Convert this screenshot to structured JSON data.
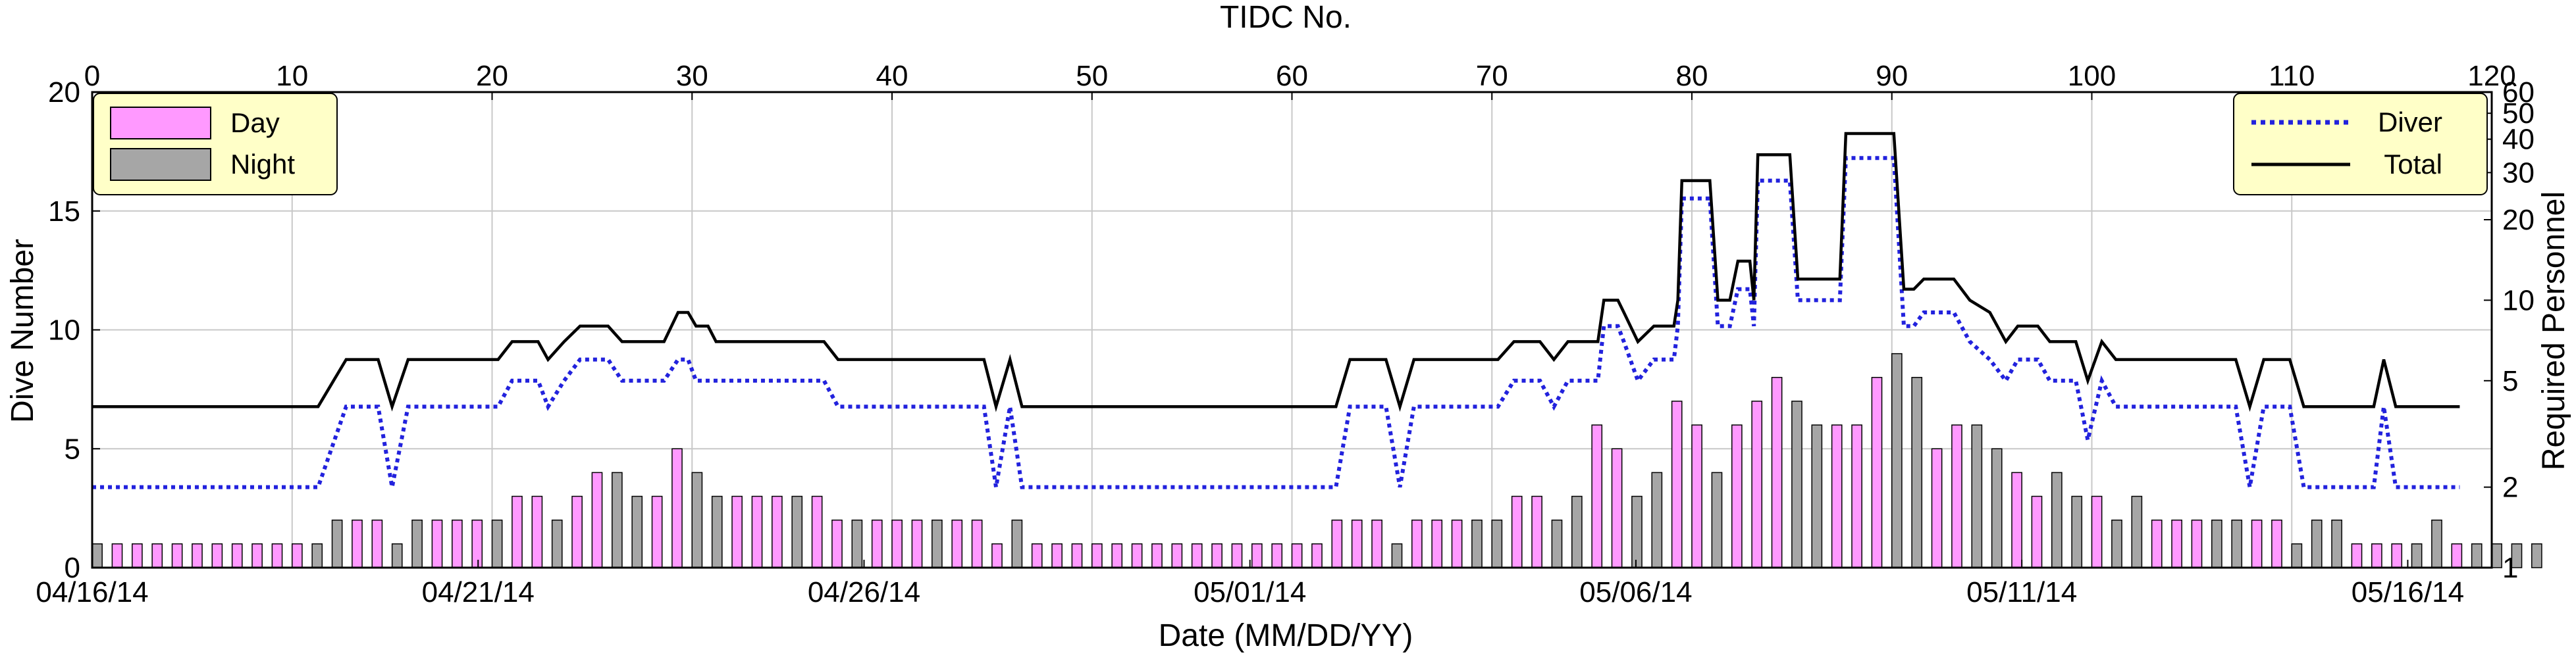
{
  "chart_data": {
    "type": "bar",
    "top_axis": {
      "label": "TIDC No.",
      "range": [
        0,
        120
      ],
      "ticks": [
        0,
        10,
        20,
        30,
        40,
        50,
        60,
        70,
        80,
        90,
        100,
        110,
        120
      ]
    },
    "xlabel": "Date (MM/DD/YY)",
    "x_tick_labels": [
      "04/16/14",
      "04/21/14",
      "04/26/14",
      "05/01/14",
      "05/06/14",
      "05/11/14",
      "05/16/14"
    ],
    "x_tick_positions_tidc": [
      0,
      19.3,
      38.6,
      57.9,
      77.2,
      96.5,
      115.8
    ],
    "ylabel": "Dive Number",
    "ylim": [
      0,
      20
    ],
    "y_ticks": [
      0,
      5,
      10,
      15,
      20
    ],
    "y2label": "Required Personnel",
    "y2_scale": "log",
    "y2lim": [
      1,
      60
    ],
    "y2_ticks": [
      1,
      2,
      5,
      10,
      20,
      30,
      40,
      50,
      60
    ],
    "grid": true,
    "legends": [
      {
        "position": "top-left",
        "entries": [
          {
            "label": "Day",
            "color": "#ff99ff"
          },
          {
            "label": "Night",
            "color": "#a6a6a6"
          }
        ]
      },
      {
        "position": "top-right",
        "entries": [
          {
            "label": "Diver",
            "color": "#2222dd"
          },
          {
            "label": "Total",
            "color": "#000000"
          }
        ]
      }
    ],
    "series_colors": {
      "day": "#ff99ff",
      "night": "#a6a6a6",
      "diver": "#2222dd",
      "total": "#000000"
    },
    "dive_numbers": [
      1,
      1,
      1,
      1,
      1,
      1,
      1,
      1,
      1,
      1,
      1,
      1,
      2,
      2,
      2,
      1,
      2,
      2,
      2,
      2,
      2,
      3,
      3,
      2,
      3,
      4,
      4,
      3,
      3,
      5,
      4,
      3,
      3,
      3,
      3,
      3,
      3,
      2,
      2,
      2,
      2,
      2,
      2,
      2,
      2,
      1,
      2,
      1,
      1,
      1,
      1,
      1,
      1,
      1,
      1,
      1,
      1,
      1,
      1,
      1,
      1,
      1,
      2,
      2,
      2,
      1,
      2,
      2,
      2,
      2,
      2,
      3,
      3,
      2,
      3,
      6,
      5,
      3,
      4,
      7,
      6,
      4,
      6,
      7,
      8,
      7,
      6,
      6,
      6,
      8,
      9,
      8,
      5,
      6,
      6,
      5,
      4,
      3,
      4,
      3,
      3,
      2,
      3,
      2,
      2,
      2,
      2,
      2,
      2,
      2,
      1,
      2,
      2,
      1,
      1,
      1,
      1,
      2,
      1,
      1,
      1,
      1,
      1
    ],
    "shift": [
      "N",
      "D",
      "D",
      "D",
      "D",
      "D",
      "D",
      "D",
      "D",
      "D",
      "D",
      "N",
      "N",
      "D",
      "D",
      "N",
      "N",
      "D",
      "D",
      "D",
      "N",
      "D",
      "D",
      "N",
      "D",
      "D",
      "N",
      "N",
      "D",
      "D",
      "N",
      "N",
      "D",
      "D",
      "D",
      "N",
      "D",
      "D",
      "N",
      "D",
      "D",
      "D",
      "N",
      "D",
      "D",
      "D",
      "N",
      "D",
      "D",
      "D",
      "D",
      "D",
      "D",
      "D",
      "D",
      "D",
      "D",
      "D",
      "D",
      "D",
      "D",
      "D",
      "D",
      "D",
      "D",
      "N",
      "D",
      "D",
      "D",
      "N",
      "N",
      "D",
      "D",
      "N",
      "N",
      "D",
      "D",
      "N",
      "N",
      "D",
      "D",
      "N",
      "D",
      "D",
      "D",
      "N",
      "N",
      "D",
      "D",
      "D",
      "N",
      "N",
      "D",
      "D",
      "N",
      "N",
      "D",
      "D",
      "N",
      "N",
      "D",
      "N",
      "N",
      "D",
      "D",
      "D",
      "N",
      "N",
      "D",
      "D",
      "N",
      "N",
      "N",
      "D",
      "D",
      "D",
      "N",
      "N",
      "D",
      "N",
      "N",
      "N",
      "N"
    ],
    "personnel": {
      "total": [
        [
          0,
          4
        ],
        [
          11.3,
          4
        ],
        [
          12.7,
          6
        ],
        [
          14.3,
          6
        ],
        [
          15,
          4
        ],
        [
          15.8,
          6
        ],
        [
          20.3,
          6
        ],
        [
          21,
          7
        ],
        [
          22.3,
          7
        ],
        [
          22.8,
          6
        ],
        [
          23.6,
          7
        ],
        [
          24.4,
          8
        ],
        [
          25.8,
          8
        ],
        [
          26.5,
          7
        ],
        [
          28.6,
          7
        ],
        [
          29.3,
          9
        ],
        [
          29.8,
          9
        ],
        [
          30.2,
          8
        ],
        [
          30.8,
          8
        ],
        [
          31.2,
          7
        ],
        [
          36.6,
          7
        ],
        [
          37.3,
          6
        ],
        [
          44.6,
          6
        ],
        [
          45.2,
          4
        ],
        [
          45.9,
          6
        ],
        [
          46.5,
          4
        ],
        [
          62.2,
          4
        ],
        [
          62.9,
          6
        ],
        [
          64.7,
          6
        ],
        [
          65.4,
          4
        ],
        [
          66.1,
          6
        ],
        [
          70.3,
          6
        ],
        [
          71.1,
          7
        ],
        [
          72.4,
          7
        ],
        [
          73.1,
          6
        ],
        [
          73.8,
          7
        ],
        [
          75.3,
          7
        ],
        [
          75.6,
          10
        ],
        [
          76.3,
          10
        ],
        [
          76.6,
          9
        ],
        [
          77.3,
          7
        ],
        [
          78.1,
          8
        ],
        [
          79.1,
          8
        ],
        [
          79.3,
          10
        ],
        [
          79.5,
          28
        ],
        [
          80.9,
          28
        ],
        [
          81.3,
          10
        ],
        [
          81.9,
          10
        ],
        [
          82.3,
          14
        ],
        [
          82.9,
          14
        ],
        [
          83.1,
          10
        ],
        [
          83.3,
          35
        ],
        [
          84.9,
          35
        ],
        [
          85.3,
          12
        ],
        [
          87.4,
          12
        ],
        [
          87.7,
          42
        ],
        [
          90.1,
          42
        ],
        [
          90.6,
          11
        ],
        [
          91.1,
          11
        ],
        [
          91.6,
          12
        ],
        [
          93.1,
          12
        ],
        [
          93.9,
          10
        ],
        [
          94.9,
          9
        ],
        [
          95.7,
          7
        ],
        [
          96.3,
          8
        ],
        [
          97.3,
          8
        ],
        [
          97.9,
          7
        ],
        [
          99.2,
          7
        ],
        [
          99.8,
          5
        ],
        [
          100.5,
          7
        ],
        [
          101.2,
          6
        ],
        [
          107.2,
          6
        ],
        [
          107.9,
          4
        ],
        [
          108.6,
          6
        ],
        [
          109.9,
          6
        ],
        [
          110.6,
          4
        ],
        [
          114.1,
          4
        ],
        [
          114.6,
          6
        ],
        [
          115.2,
          4
        ],
        [
          118.4,
          4
        ]
      ],
      "diver": [
        [
          0,
          2
        ],
        [
          11.3,
          2
        ],
        [
          12.7,
          4
        ],
        [
          14.3,
          4
        ],
        [
          15,
          2
        ],
        [
          15.8,
          4
        ],
        [
          20.3,
          4
        ],
        [
          21,
          5
        ],
        [
          22.3,
          5
        ],
        [
          22.8,
          4
        ],
        [
          23.6,
          5
        ],
        [
          24.4,
          6
        ],
        [
          25.8,
          6
        ],
        [
          26.5,
          5
        ],
        [
          28.6,
          5
        ],
        [
          29.3,
          6
        ],
        [
          29.8,
          6
        ],
        [
          30.2,
          5
        ],
        [
          30.8,
          5
        ],
        [
          31.2,
          5
        ],
        [
          36.6,
          5
        ],
        [
          37.3,
          4
        ],
        [
          44.6,
          4
        ],
        [
          45.2,
          2
        ],
        [
          45.9,
          4
        ],
        [
          46.5,
          2
        ],
        [
          62.2,
          2
        ],
        [
          62.9,
          4
        ],
        [
          64.7,
          4
        ],
        [
          65.4,
          2
        ],
        [
          66.1,
          4
        ],
        [
          70.3,
          4
        ],
        [
          71.1,
          5
        ],
        [
          72.4,
          5
        ],
        [
          73.1,
          4
        ],
        [
          73.8,
          5
        ],
        [
          75.3,
          5
        ],
        [
          75.6,
          8
        ],
        [
          76.3,
          8
        ],
        [
          76.6,
          7
        ],
        [
          77.3,
          5
        ],
        [
          78.1,
          6
        ],
        [
          79.1,
          6
        ],
        [
          79.3,
          8
        ],
        [
          79.5,
          24
        ],
        [
          80.9,
          24
        ],
        [
          81.3,
          8
        ],
        [
          81.9,
          8
        ],
        [
          82.3,
          11
        ],
        [
          82.9,
          11
        ],
        [
          83.1,
          8
        ],
        [
          83.3,
          28
        ],
        [
          84.9,
          28
        ],
        [
          85.3,
          10
        ],
        [
          87.4,
          10
        ],
        [
          87.7,
          34
        ],
        [
          90.1,
          34
        ],
        [
          90.6,
          8
        ],
        [
          91.1,
          8
        ],
        [
          91.6,
          9
        ],
        [
          93.1,
          9
        ],
        [
          93.9,
          7
        ],
        [
          94.9,
          6
        ],
        [
          95.7,
          5
        ],
        [
          96.3,
          6
        ],
        [
          97.3,
          6
        ],
        [
          97.9,
          5
        ],
        [
          99.2,
          5
        ],
        [
          99.8,
          3
        ],
        [
          100.5,
          5
        ],
        [
          101.2,
          4
        ],
        [
          107.2,
          4
        ],
        [
          107.9,
          2
        ],
        [
          108.6,
          4
        ],
        [
          109.9,
          4
        ],
        [
          110.6,
          2
        ],
        [
          114.1,
          2
        ],
        [
          114.6,
          4
        ],
        [
          115.2,
          2
        ],
        [
          118.4,
          2
        ]
      ]
    }
  }
}
